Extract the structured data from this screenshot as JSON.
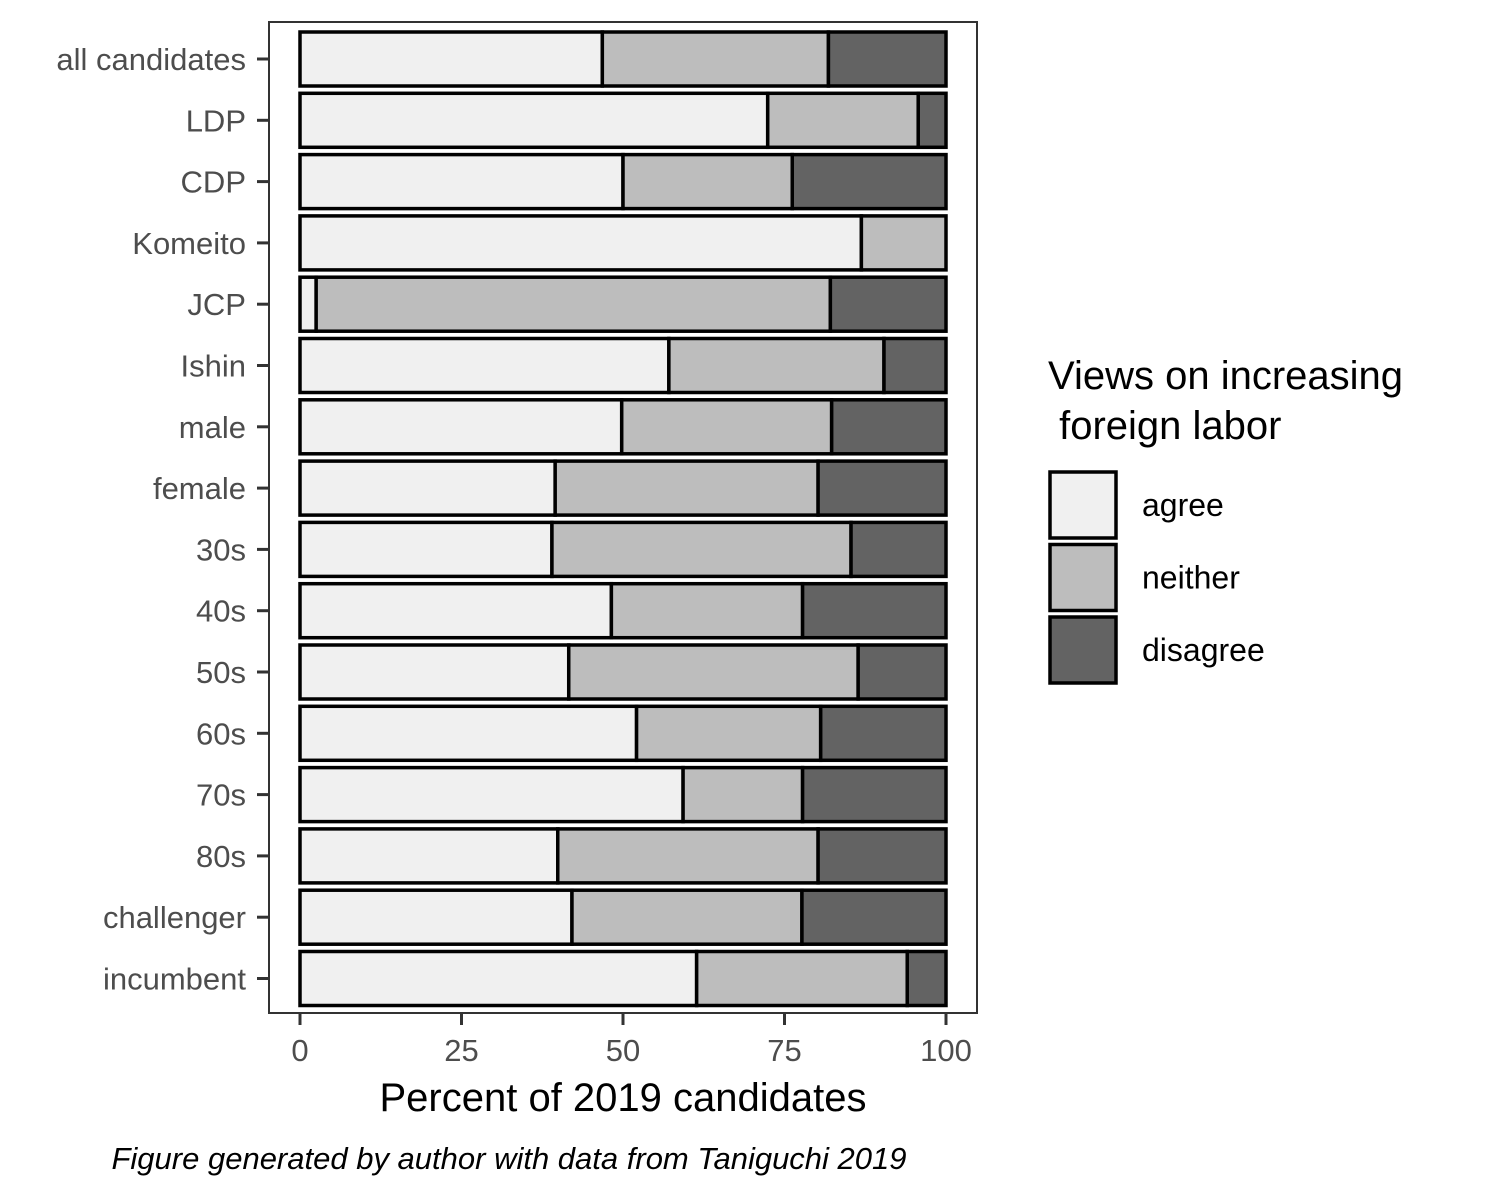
{
  "chart_data": {
    "type": "bar",
    "orientation": "horizontal",
    "stacked": true,
    "categories": [
      "all candidates",
      "LDP",
      "CDP",
      "Komeito",
      "JCP",
      "Ishin",
      "male",
      "female",
      "30s",
      "40s",
      "50s",
      "60s",
      "70s",
      "80s",
      "challenger",
      "incumbent"
    ],
    "series": [
      {
        "name": "agree",
        "color": "#f0f0f0",
        "values": [
          46.8,
          72.4,
          50.0,
          86.9,
          2.5,
          57.1,
          49.8,
          39.5,
          39.0,
          48.2,
          41.6,
          52.1,
          59.3,
          39.9,
          42.1,
          61.4
        ]
      },
      {
        "name": "neither",
        "color": "#bdbdbd",
        "values": [
          35.0,
          23.3,
          26.2,
          13.1,
          79.6,
          33.3,
          32.5,
          40.7,
          46.3,
          29.6,
          44.8,
          28.5,
          18.5,
          40.3,
          35.6,
          32.6
        ]
      },
      {
        "name": "disagree",
        "color": "#636363",
        "values": [
          18.2,
          4.3,
          23.8,
          0.0,
          17.9,
          9.6,
          17.7,
          19.8,
          14.7,
          22.2,
          13.6,
          19.4,
          22.2,
          19.8,
          22.3,
          6.0
        ]
      }
    ],
    "xlabel": "Percent of 2019 candidates",
    "ylabel": "",
    "xlim": [
      0,
      100
    ],
    "xticks": [
      0,
      25,
      50,
      75,
      100
    ],
    "legend": {
      "title": "Views on increasing\n foreign labor",
      "title_lines": [
        "Views on increasing",
        " foreign labor"
      ],
      "placement": "right"
    },
    "caption": "Figure generated by author with data from Taniguchi 2019",
    "grid": false
  }
}
